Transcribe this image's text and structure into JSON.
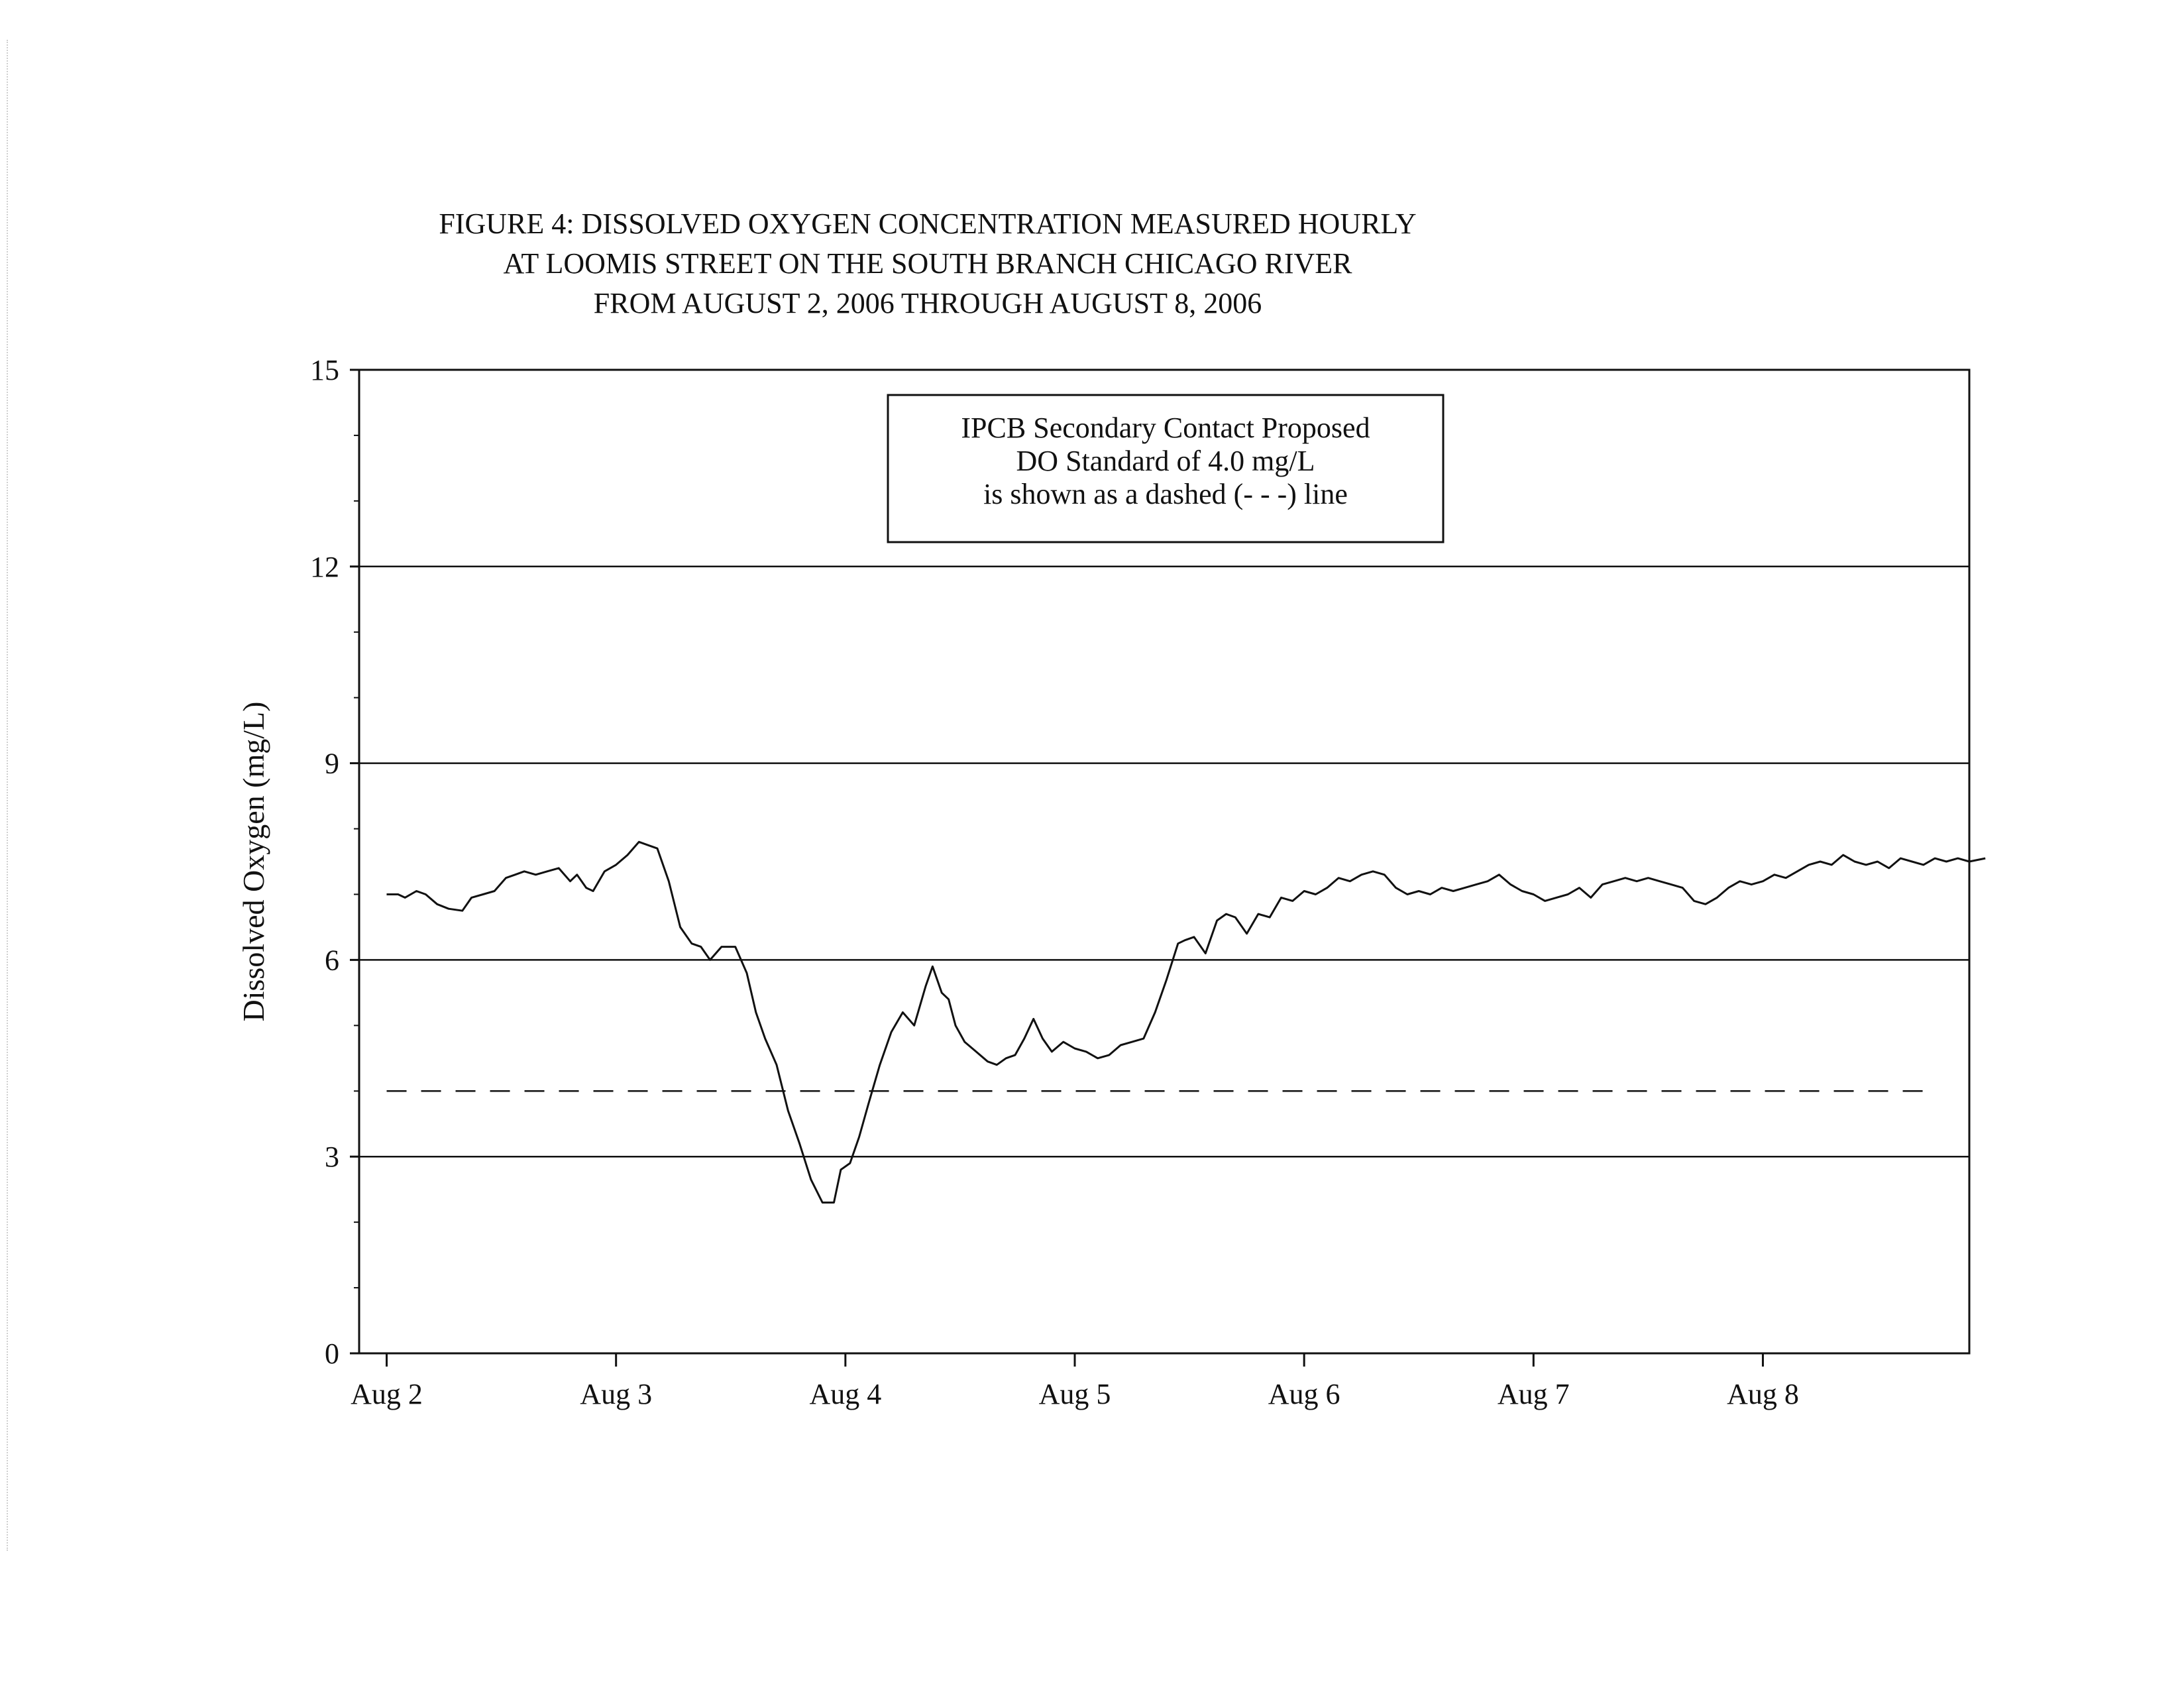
{
  "chart_data": {
    "type": "line",
    "title": [
      "FIGURE 4: DISSOLVED OXYGEN CONCENTRATION MEASURED HOURLY",
      "AT LOOMIS STREET ON THE SOUTH BRANCH CHICAGO RIVER",
      "FROM AUGUST 2, 2006 THROUGH AUGUST 8, 2006"
    ],
    "xlabel": "",
    "ylabel": "Dissolved Oxygen (mg/L)",
    "ylim": [
      0,
      15
    ],
    "xlim": [
      -0.12,
      6.9
    ],
    "yticks": [
      0,
      3,
      6,
      9,
      12,
      15
    ],
    "yminor_step": 1,
    "xticks": [
      0,
      1,
      2,
      3,
      4,
      5,
      6
    ],
    "xtick_labels": [
      "Aug 2",
      "Aug 3",
      "Aug 4",
      "Aug 5",
      "Aug 6",
      "Aug 7",
      "Aug 8"
    ],
    "grid": "horizontal",
    "note": [
      "IPCB Secondary Contact Proposed",
      "DO Standard of 4.0 mg/L",
      "is shown as a dashed (- - -) line"
    ],
    "standard": {
      "value": 4.0,
      "style": "dashed",
      "x": [
        0,
        6.7
      ]
    },
    "series": [
      {
        "style": "solid",
        "x": [
          0,
          0.05,
          0.08,
          0.13,
          0.17,
          0.22,
          0.27,
          0.33,
          0.37,
          0.42,
          0.47,
          0.52,
          0.56,
          0.6,
          0.65,
          0.7,
          0.75,
          0.8,
          0.83,
          0.87,
          0.9,
          0.95,
          1.0,
          1.05,
          1.1,
          1.14,
          1.18,
          1.23,
          1.28,
          1.33,
          1.37,
          1.41,
          1.46,
          1.52,
          1.57,
          1.61,
          1.65,
          1.7,
          1.75,
          1.8,
          1.85,
          1.9,
          1.95,
          1.98,
          2.02,
          2.06,
          2.1,
          2.15,
          2.2,
          2.25,
          2.3,
          2.35,
          2.38,
          2.42,
          2.45,
          2.48,
          2.52,
          2.57,
          2.62,
          2.66,
          2.7,
          2.74,
          2.78,
          2.82,
          2.86,
          2.9,
          2.95,
          3.0,
          3.05,
          3.1,
          3.15,
          3.2,
          3.25,
          3.3,
          3.35,
          3.4,
          3.45,
          3.48,
          3.52,
          3.57,
          3.62,
          3.66,
          3.7,
          3.75,
          3.8,
          3.85,
          3.9,
          3.95,
          4.0,
          4.05,
          4.1,
          4.15,
          4.2,
          4.25,
          4.3,
          4.35,
          4.4,
          4.45,
          4.5,
          4.55,
          4.6,
          4.65,
          4.7,
          4.75,
          4.8,
          4.85,
          4.9,
          4.95,
          5.0,
          5.05,
          5.1,
          5.15,
          5.2,
          5.25,
          5.3,
          5.35,
          5.4,
          5.45,
          5.5,
          5.55,
          5.6,
          5.65,
          5.7,
          5.75,
          5.8,
          5.85,
          5.9,
          5.95,
          6.0,
          6.05,
          6.1,
          6.15,
          6.2,
          6.25,
          6.3,
          6.35,
          6.4,
          6.45,
          6.5,
          6.55,
          6.6,
          6.65,
          6.7,
          6.75,
          6.8,
          6.85,
          6.9,
          6.97
        ],
        "values": [
          7.0,
          7.0,
          6.95,
          7.05,
          7.0,
          6.85,
          6.78,
          6.75,
          6.95,
          7.0,
          7.05,
          7.25,
          7.3,
          7.35,
          7.3,
          7.35,
          7.4,
          7.2,
          7.3,
          7.1,
          7.05,
          7.35,
          7.45,
          7.6,
          7.8,
          7.75,
          7.7,
          7.2,
          6.5,
          6.25,
          6.2,
          6.0,
          6.2,
          6.2,
          5.8,
          5.2,
          4.8,
          4.4,
          3.7,
          3.2,
          2.65,
          2.3,
          2.3,
          2.8,
          2.9,
          3.3,
          3.8,
          4.4,
          4.9,
          5.2,
          5.0,
          5.6,
          5.9,
          5.5,
          5.4,
          5.0,
          4.75,
          4.6,
          4.45,
          4.4,
          4.5,
          4.55,
          4.8,
          5.1,
          4.8,
          4.6,
          4.75,
          4.65,
          4.6,
          4.5,
          4.55,
          4.7,
          4.75,
          4.8,
          5.2,
          5.7,
          6.25,
          6.3,
          6.35,
          6.1,
          6.6,
          6.7,
          6.65,
          6.4,
          6.7,
          6.65,
          6.95,
          6.9,
          7.05,
          7.0,
          7.1,
          7.25,
          7.2,
          7.3,
          7.35,
          7.3,
          7.1,
          7.0,
          7.05,
          7.0,
          7.1,
          7.05,
          7.1,
          7.15,
          7.2,
          7.3,
          7.15,
          7.05,
          7.0,
          6.9,
          6.95,
          7.0,
          7.1,
          6.95,
          7.15,
          7.2,
          7.25,
          7.2,
          7.25,
          7.2,
          7.15,
          7.1,
          6.9,
          6.85,
          6.95,
          7.1,
          7.2,
          7.15,
          7.2,
          7.3,
          7.25,
          7.35,
          7.45,
          7.5,
          7.45,
          7.6,
          7.5,
          7.45,
          7.5,
          7.4,
          7.55,
          7.5,
          7.45,
          7.55,
          7.5,
          7.55,
          7.5,
          7.55
        ]
      }
    ]
  }
}
